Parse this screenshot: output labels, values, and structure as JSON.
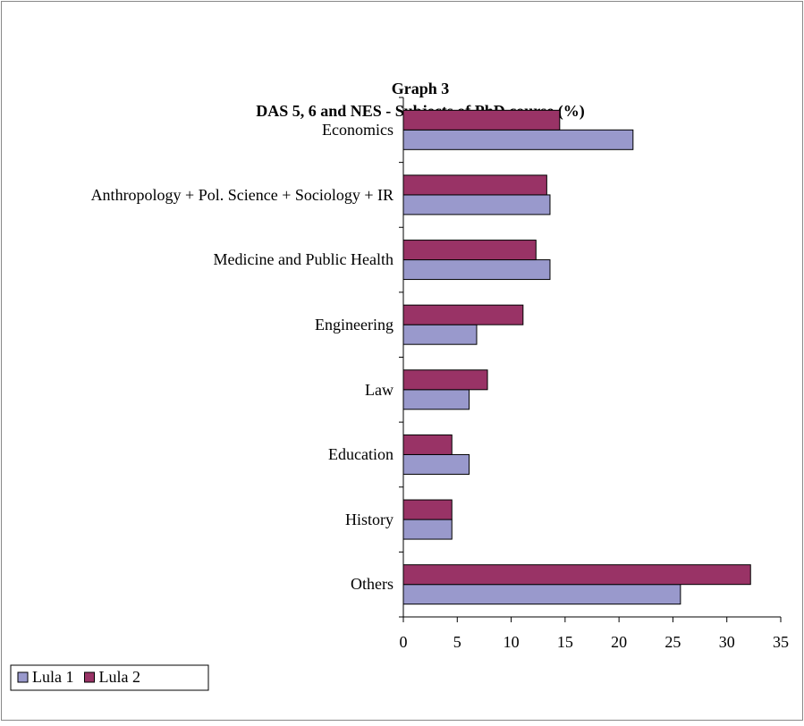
{
  "chart_data": {
    "type": "barh",
    "title": "Graph 3",
    "subtitle": "DAS 5, 6 and NES - Subjects of PhD course (%)",
    "categories": [
      "Economics",
      "Anthropology + Pol. Science + Sociology + IR",
      "Medicine and Public Health",
      "Engineering",
      "Law",
      "Education",
      "History",
      "Others"
    ],
    "series": [
      {
        "name": "Lula 1",
        "color": "#9999cc",
        "values": [
          21.3,
          13.6,
          13.6,
          6.8,
          6.1,
          6.1,
          4.5,
          25.7
        ]
      },
      {
        "name": "Lula 2",
        "color": "#993366",
        "values": [
          14.5,
          13.3,
          12.3,
          11.1,
          7.8,
          4.5,
          4.5,
          32.2
        ]
      }
    ],
    "xlim": [
      0,
      35
    ],
    "xticks": [
      0,
      5,
      10,
      15,
      20,
      25,
      30,
      35
    ],
    "legend": "bottom-left"
  }
}
